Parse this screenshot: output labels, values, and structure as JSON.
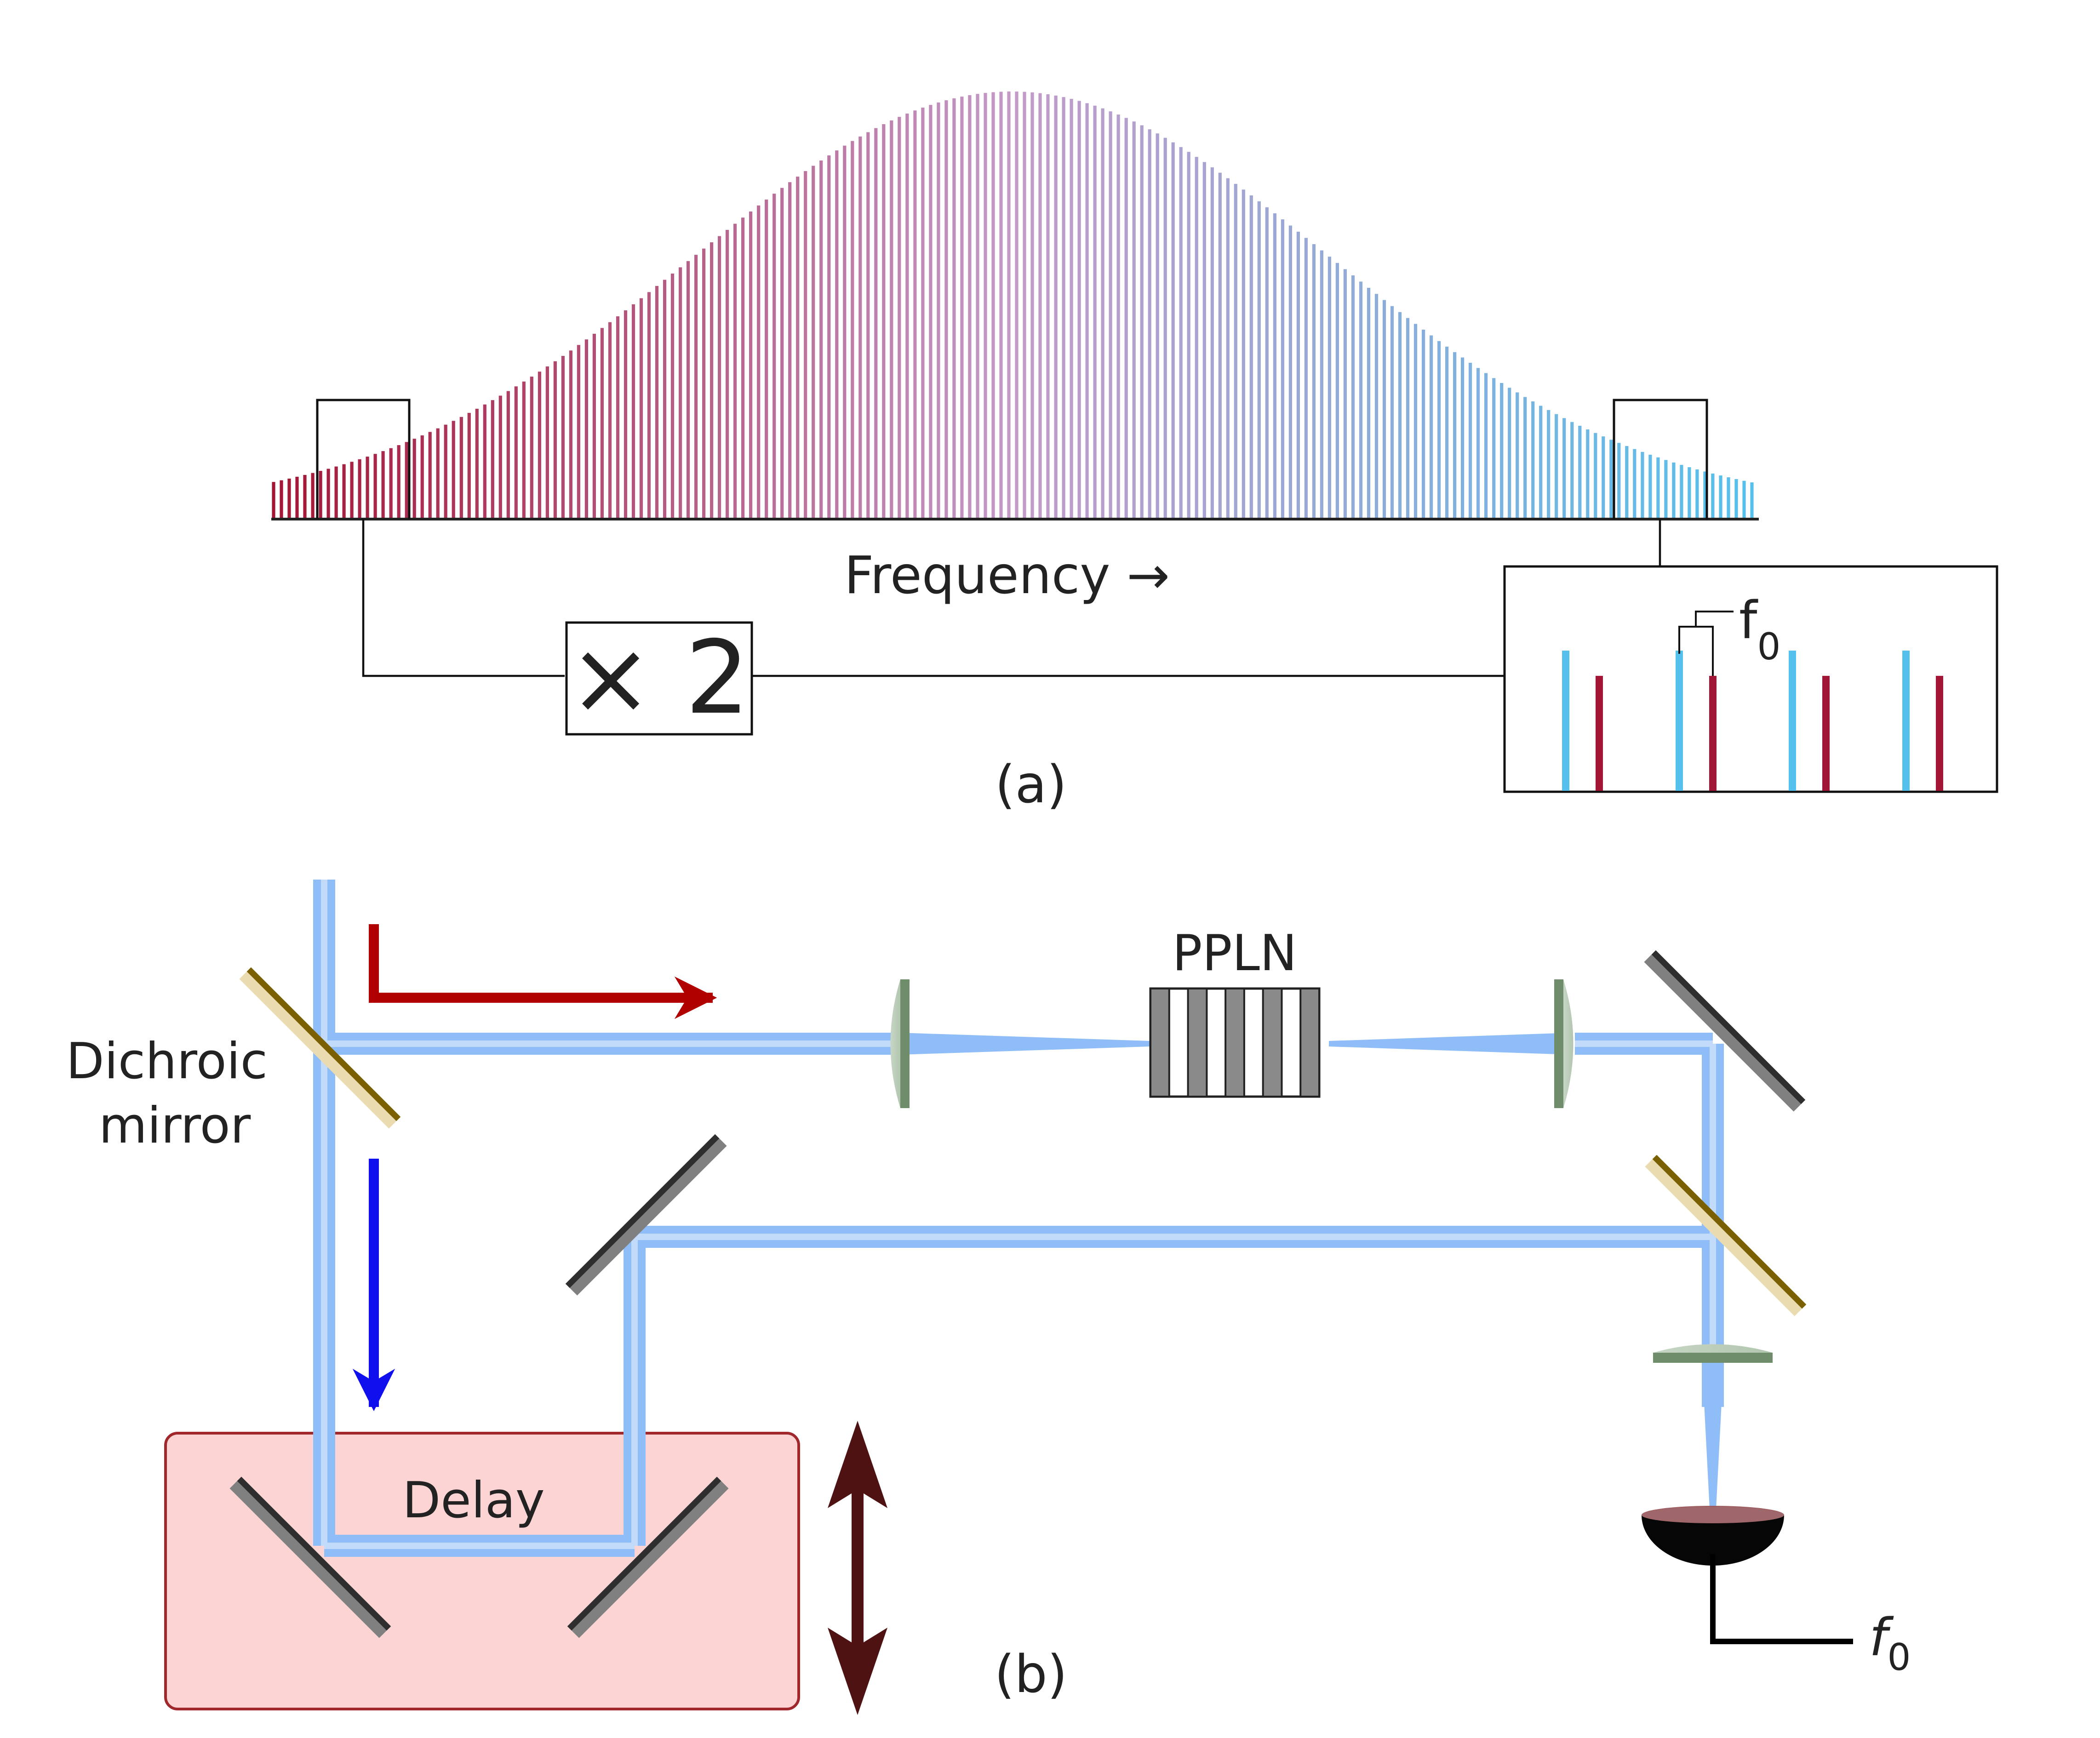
{
  "panel_a": {
    "axis_label": "Frequency →",
    "multiplier_label": "× 2",
    "inset_label": "f",
    "inset_subscript": "0",
    "caption": "(a)",
    "comb": {
      "line_count": 190,
      "red_color": "#a31535",
      "mid_color": "#c49ac8",
      "blue_color": "#55c0ec"
    },
    "inset_lines": [
      {
        "series": "blue",
        "level": 1.0
      },
      {
        "series": "red",
        "level": 0.82
      },
      {
        "series": "blue",
        "level": 1.0
      },
      {
        "series": "red",
        "level": 0.82
      },
      {
        "series": "blue",
        "level": 1.0
      },
      {
        "series": "red",
        "level": 0.82
      },
      {
        "series": "blue",
        "level": 1.0
      },
      {
        "series": "red",
        "level": 0.82
      }
    ]
  },
  "panel_b": {
    "dichroic_label_line1": "Dichroic",
    "dichroic_label_line2": "mirror",
    "crystal_label": "PPLN",
    "delay_label": "Delay",
    "output_label": "f",
    "output_subscript": "0",
    "caption": "(b)",
    "colors": {
      "beam": "#8fbdf7",
      "red_arrow": "#b00000",
      "blue_arrow": "#1010ee",
      "stage_arrow": "#4e1212",
      "delay_fill": "#fcd4d4",
      "delay_border": "#a0282d"
    }
  }
}
